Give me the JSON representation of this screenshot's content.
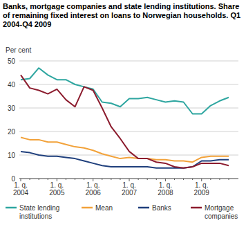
{
  "chart_data": {
    "type": "line",
    "title": "Banks, mortgage companies and state lending institutions. Share of remaining fixed interest on loans to Norwegian households. Q1 2004-Q4 2009",
    "y_label": "Per cent",
    "categories": [
      "1. q. 2004",
      null,
      null,
      null,
      "1. q. 2005",
      null,
      null,
      null,
      "1. q. 2006",
      null,
      null,
      null,
      "1. q. 2007",
      null,
      null,
      null,
      "1. q. 2008",
      null,
      null,
      null,
      "1. q. 2009",
      null,
      null,
      null
    ],
    "series": [
      {
        "name": "State lending institutions",
        "color": "#2ea6a0",
        "values": [
          42,
          42.5,
          47,
          44,
          42,
          42,
          40,
          39,
          38,
          32.5,
          32,
          30.5,
          34,
          34,
          34.5,
          33.5,
          32.5,
          33,
          32.5,
          27.5,
          27.5,
          31,
          33,
          34.5
        ]
      },
      {
        "name": "Mean",
        "color": "#f2a23a",
        "values": [
          17.5,
          16.5,
          16.5,
          15.5,
          15.5,
          14.5,
          13.5,
          13,
          12,
          10.5,
          9.5,
          8.5,
          9,
          8.5,
          8.5,
          8,
          8,
          7.5,
          7.5,
          7,
          9,
          9.5,
          9.5,
          9.5
        ]
      },
      {
        "name": "Banks",
        "color": "#1f3f7c",
        "values": [
          11.5,
          11,
          10,
          9.5,
          9.5,
          9,
          8.5,
          7.5,
          6.5,
          5.5,
          5,
          5,
          5,
          5,
          5,
          4.5,
          4.5,
          4.5,
          4.5,
          5,
          7.5,
          7.5,
          8,
          8
        ]
      },
      {
        "name": "Mortgage companies",
        "color": "#8c1c2e",
        "values": [
          44,
          38.5,
          37.5,
          36,
          38,
          33.5,
          30.5,
          39,
          37.5,
          30,
          22,
          17,
          11.5,
          8.5,
          8.5,
          7,
          6.5,
          5,
          4.5,
          5,
          6.5,
          6.5,
          6.5,
          5.5
        ]
      }
    ],
    "ylim": [
      0,
      50
    ],
    "yticks": [
      0,
      10,
      20,
      30,
      40,
      50
    ],
    "grid": true,
    "legend": "bottom"
  }
}
